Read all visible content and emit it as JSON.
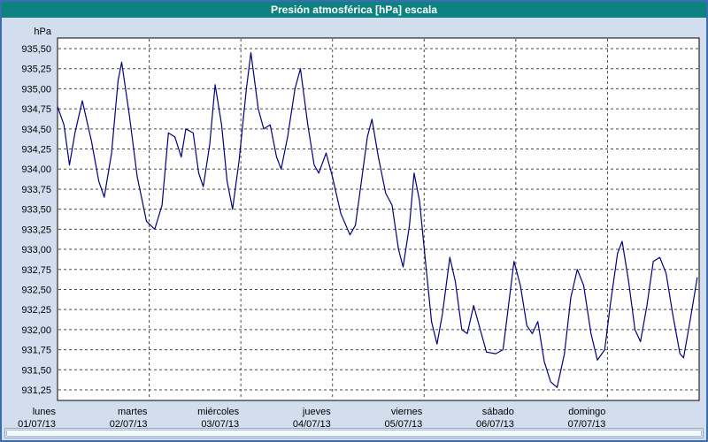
{
  "window": {
    "title": "Presión atmosférica [hPa] escala"
  },
  "colors": {
    "window_border": "#3c6cb4",
    "window_bg": "#d2deee",
    "titlebar_bg": "#0e8181",
    "titlebar_text": "#ffffff",
    "plot_bg": "#ffffff",
    "plot_border": "#000000",
    "grid": "#4a4a4a",
    "line": "#000080"
  },
  "chart_data": {
    "type": "line",
    "title": "Presión atmosférica [hPa] escala",
    "grid": true,
    "legend": "none",
    "y_axis": {
      "unit_label": "hPa",
      "min": 931.25,
      "max": 935.5,
      "tick_step": 0.25,
      "tick_values": [
        935.5,
        935.25,
        935.0,
        934.75,
        934.5,
        934.25,
        934.0,
        933.75,
        933.5,
        933.25,
        933.0,
        932.75,
        932.5,
        932.25,
        932.0,
        931.75,
        931.5,
        931.25
      ],
      "tick_labels": [
        "935,50",
        "935,25",
        "935,00",
        "934,75",
        "934,50",
        "934,25",
        "934,00",
        "933,75",
        "933,50",
        "933,25",
        "933,00",
        "932,75",
        "932,50",
        "932,25",
        "932,00",
        "931,75",
        "931,50",
        "931,25"
      ]
    },
    "x_axis": {
      "span_days": 7,
      "days": [
        {
          "name": "lunes",
          "date": "01/07/13"
        },
        {
          "name": "martes",
          "date": "02/07/13"
        },
        {
          "name": "miércoles",
          "date": "03/07/13"
        },
        {
          "name": "jueves",
          "date": "04/07/13"
        },
        {
          "name": "viernes",
          "date": "05/07/13"
        },
        {
          "name": "sábado",
          "date": "06/07/13"
        },
        {
          "name": "domingo",
          "date": "07/07/13"
        }
      ]
    },
    "series": [
      {
        "name": "presión atmosférica",
        "unit": "hPa",
        "color": "#000080",
        "points": [
          [
            0.0,
            934.78
          ],
          [
            0.07,
            934.55
          ],
          [
            0.13,
            934.05
          ],
          [
            0.19,
            934.45
          ],
          [
            0.27,
            934.85
          ],
          [
            0.37,
            934.35
          ],
          [
            0.45,
            933.85
          ],
          [
            0.51,
            933.65
          ],
          [
            0.59,
            934.2
          ],
          [
            0.66,
            935.1
          ],
          [
            0.7,
            935.33
          ],
          [
            0.78,
            934.7
          ],
          [
            0.87,
            933.9
          ],
          [
            0.97,
            933.35
          ],
          [
            1.06,
            933.25
          ],
          [
            1.14,
            933.55
          ],
          [
            1.21,
            934.45
          ],
          [
            1.28,
            934.4
          ],
          [
            1.35,
            934.15
          ],
          [
            1.4,
            934.5
          ],
          [
            1.48,
            934.45
          ],
          [
            1.54,
            933.95
          ],
          [
            1.59,
            933.78
          ],
          [
            1.66,
            934.3
          ],
          [
            1.72,
            935.05
          ],
          [
            1.79,
            934.55
          ],
          [
            1.85,
            933.85
          ],
          [
            1.91,
            933.5
          ],
          [
            1.98,
            934.1
          ],
          [
            2.06,
            935.0
          ],
          [
            2.11,
            935.45
          ],
          [
            2.19,
            934.75
          ],
          [
            2.25,
            934.5
          ],
          [
            2.32,
            934.55
          ],
          [
            2.39,
            934.15
          ],
          [
            2.44,
            934.0
          ],
          [
            2.51,
            934.4
          ],
          [
            2.59,
            935.0
          ],
          [
            2.65,
            935.25
          ],
          [
            2.73,
            934.55
          ],
          [
            2.8,
            934.05
          ],
          [
            2.85,
            933.95
          ],
          [
            2.93,
            934.2
          ],
          [
            3.0,
            933.9
          ],
          [
            3.09,
            933.45
          ],
          [
            3.19,
            933.18
          ],
          [
            3.25,
            933.3
          ],
          [
            3.31,
            933.8
          ],
          [
            3.38,
            934.4
          ],
          [
            3.43,
            934.62
          ],
          [
            3.5,
            934.15
          ],
          [
            3.58,
            933.7
          ],
          [
            3.65,
            933.55
          ],
          [
            3.72,
            933.0
          ],
          [
            3.77,
            932.78
          ],
          [
            3.84,
            933.3
          ],
          [
            3.89,
            933.95
          ],
          [
            3.95,
            933.6
          ],
          [
            4.01,
            932.9
          ],
          [
            4.08,
            932.1
          ],
          [
            4.14,
            931.82
          ],
          [
            4.2,
            932.2
          ],
          [
            4.28,
            932.9
          ],
          [
            4.34,
            932.6
          ],
          [
            4.41,
            932.0
          ],
          [
            4.47,
            931.95
          ],
          [
            4.54,
            932.3
          ],
          [
            4.6,
            932.05
          ],
          [
            4.68,
            931.72
          ],
          [
            4.78,
            931.7
          ],
          [
            4.86,
            931.75
          ],
          [
            4.92,
            932.3
          ],
          [
            4.98,
            932.85
          ],
          [
            5.05,
            932.55
          ],
          [
            5.12,
            932.05
          ],
          [
            5.18,
            931.95
          ],
          [
            5.24,
            932.1
          ],
          [
            5.31,
            931.6
          ],
          [
            5.38,
            931.35
          ],
          [
            5.45,
            931.28
          ],
          [
            5.53,
            931.7
          ],
          [
            5.6,
            932.4
          ],
          [
            5.67,
            932.75
          ],
          [
            5.74,
            932.55
          ],
          [
            5.82,
            931.95
          ],
          [
            5.89,
            931.62
          ],
          [
            5.97,
            931.75
          ],
          [
            6.03,
            932.3
          ],
          [
            6.11,
            932.95
          ],
          [
            6.16,
            933.1
          ],
          [
            6.23,
            932.6
          ],
          [
            6.3,
            932.0
          ],
          [
            6.36,
            931.85
          ],
          [
            6.43,
            932.3
          ],
          [
            6.5,
            932.85
          ],
          [
            6.57,
            932.9
          ],
          [
            6.64,
            932.7
          ],
          [
            6.71,
            932.2
          ],
          [
            6.79,
            931.7
          ],
          [
            6.83,
            931.65
          ],
          [
            6.9,
            932.1
          ],
          [
            6.98,
            932.65
          ]
        ]
      }
    ]
  }
}
